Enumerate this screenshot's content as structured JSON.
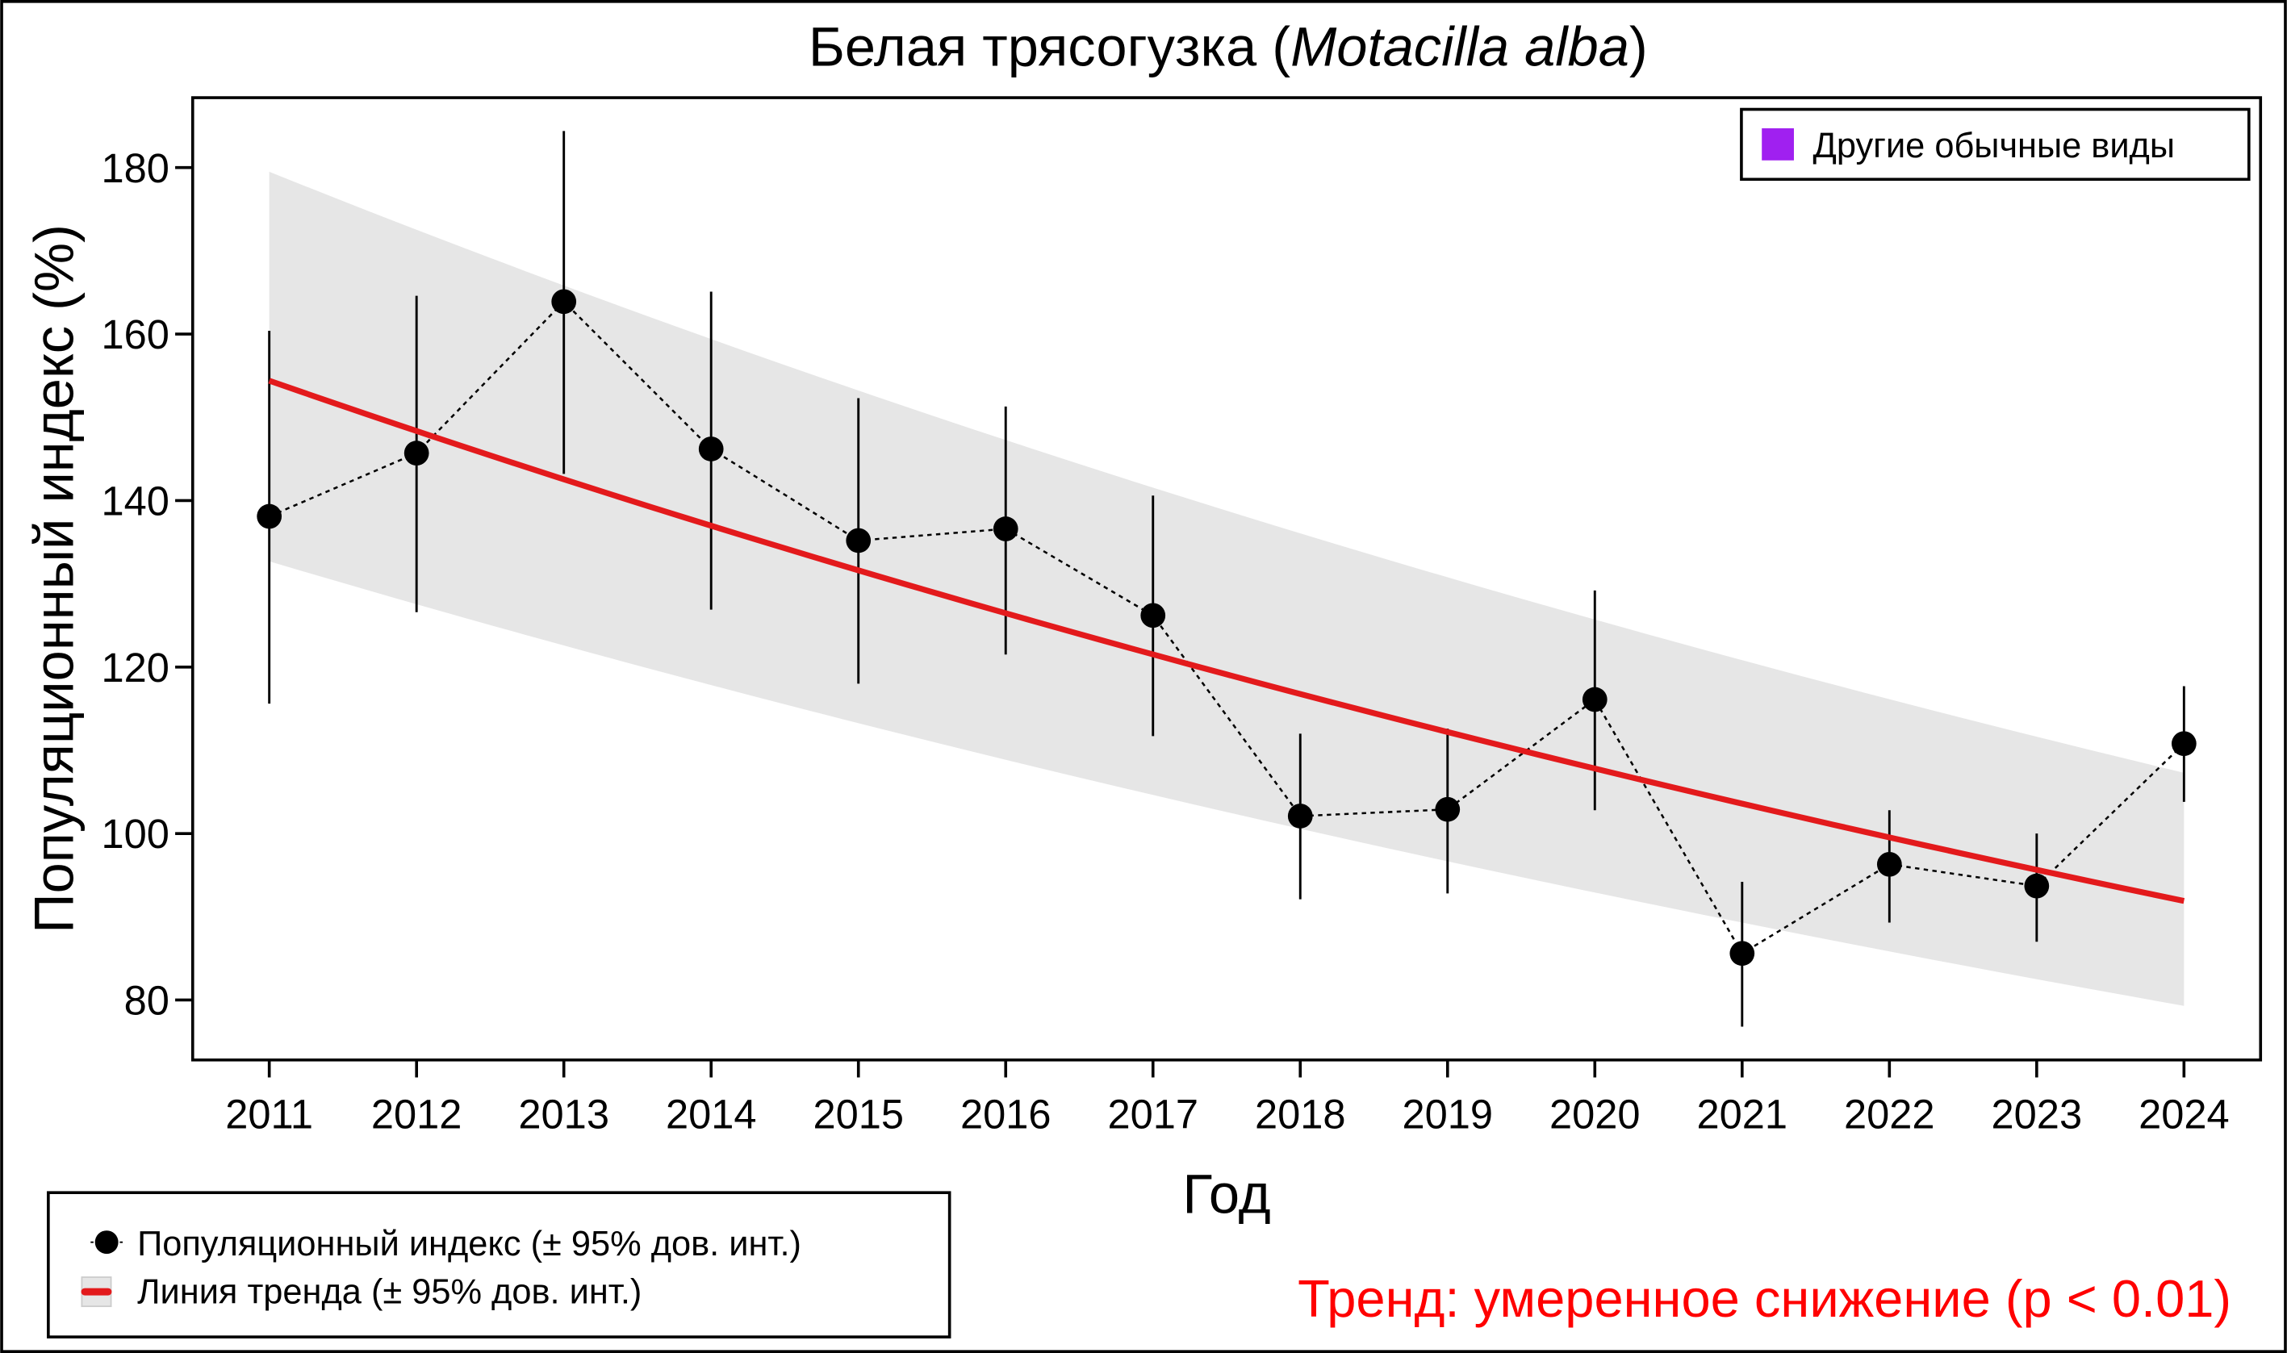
{
  "chart_data": {
    "type": "line",
    "title": "Белая трясогузка (",
    "title_latin": "Motacilla alba",
    "title_end": ")",
    "xlabel": "Год",
    "ylabel": "Популяционный индекс (%)",
    "x": [
      2011,
      2012,
      2013,
      2014,
      2015,
      2016,
      2017,
      2018,
      2019,
      2020,
      2021,
      2022,
      2023,
      2024
    ],
    "x_tick_labels": [
      "2011",
      "2012",
      "2013",
      "2014",
      "2015",
      "2016",
      "2017",
      "2018",
      "2019",
      "2020",
      "2021",
      "2022",
      "2023",
      "2024"
    ],
    "y_ticks": [
      80,
      100,
      120,
      140,
      160,
      180
    ],
    "y_tick_labels": [
      "80",
      "100",
      "120",
      "140",
      "160",
      "180"
    ],
    "ylim": [
      72.8,
      188.4
    ],
    "xlim": [
      2010.48,
      2024.52
    ],
    "grid": false,
    "series": [
      {
        "name": "Популяционный индекс (± 95% дов. инт.)",
        "values": [
          138.1,
          145.7,
          163.9,
          146.2,
          135.2,
          136.6,
          126.2,
          102.1,
          102.9,
          116.1,
          85.6,
          96.3,
          93.7,
          110.8
        ],
        "ci_upper": [
          160.4,
          164.6,
          184.4,
          165.1,
          152.3,
          151.3,
          140.6,
          112.0,
          112.6,
          129.2,
          94.2,
          102.8,
          100.0,
          117.7
        ],
        "ci_lower": [
          115.6,
          126.6,
          143.2,
          126.9,
          118.0,
          121.5,
          111.7,
          92.1,
          92.8,
          102.8,
          76.8,
          89.3,
          87.0,
          103.8
        ],
        "color": "#000000"
      },
      {
        "name": "Линия тренда (± 95% дов. инт.)",
        "start": 154.4,
        "end": 91.9,
        "band_upper_start": 179.5,
        "band_upper_end": 107.3,
        "band_lower_start": 132.7,
        "band_lower_end": 79.3,
        "color": "#e31a1c",
        "band_color": "#e6e6e6"
      }
    ],
    "group_legend": {
      "label": "Другие обычные виды",
      "color": "#a020f0",
      "placement": "top-right"
    },
    "legend_placement": "bottom-left",
    "annotation": {
      "text": "Тренд: умеренное снижение (p < 0.01)",
      "color": "#ff0000"
    }
  }
}
